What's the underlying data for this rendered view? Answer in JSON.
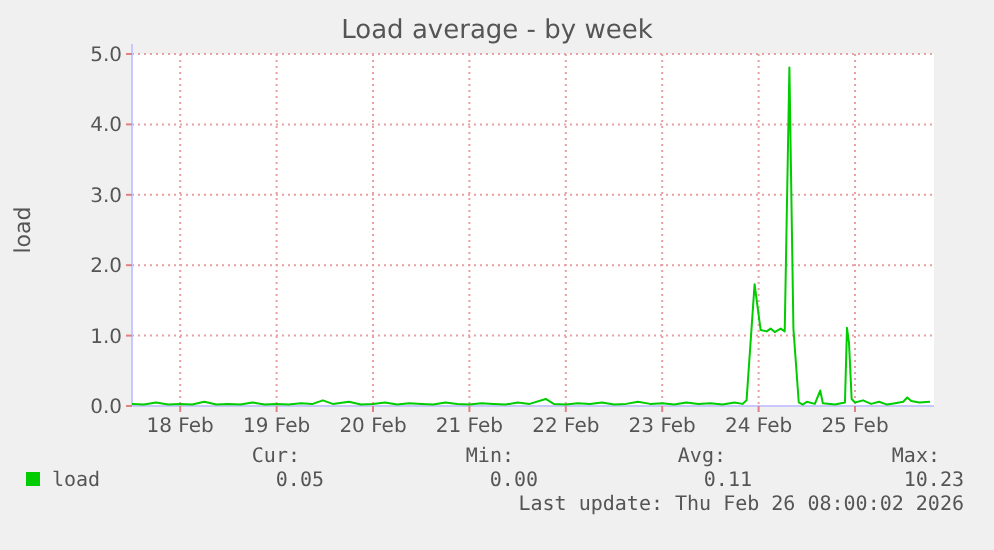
{
  "chart_data": {
    "type": "line",
    "title": "Load average - by week",
    "ylabel": "load",
    "xlim": [
      "2026-02-17T12:00",
      "2026-02-25T19:40"
    ],
    "xticks": [
      {
        "value": "2026-02-18",
        "label": "18 Feb"
      },
      {
        "value": "2026-02-19",
        "label": "19 Feb"
      },
      {
        "value": "2026-02-20",
        "label": "20 Feb"
      },
      {
        "value": "2026-02-21",
        "label": "21 Feb"
      },
      {
        "value": "2026-02-22",
        "label": "22 Feb"
      },
      {
        "value": "2026-02-23",
        "label": "23 Feb"
      },
      {
        "value": "2026-02-24",
        "label": "24 Feb"
      },
      {
        "value": "2026-02-25",
        "label": "25 Feb"
      }
    ],
    "ylim": [
      0,
      5
    ],
    "yticks": [
      {
        "value": 0,
        "label": "0.0"
      },
      {
        "value": 1,
        "label": "1.0"
      },
      {
        "value": 2,
        "label": "2.0"
      },
      {
        "value": 3,
        "label": "3.0"
      },
      {
        "value": 4,
        "label": "4.0"
      },
      {
        "value": 5,
        "label": "5.0"
      }
    ],
    "grid": true,
    "legend": "bottom",
    "marker": "none",
    "line_style": "solid",
    "series": [
      {
        "name": "load",
        "color": "#00cc00",
        "x": [
          "2026-02-17T12:00",
          "2026-02-17T15:00",
          "2026-02-17T18:00",
          "2026-02-17T21:00",
          "2026-02-18T00:00",
          "2026-02-18T03:00",
          "2026-02-18T06:00",
          "2026-02-18T09:00",
          "2026-02-18T12:00",
          "2026-02-18T15:00",
          "2026-02-18T18:00",
          "2026-02-18T21:00",
          "2026-02-19T00:00",
          "2026-02-19T03:00",
          "2026-02-19T06:00",
          "2026-02-19T09:00",
          "2026-02-19T11:30",
          "2026-02-19T14:00",
          "2026-02-19T18:00",
          "2026-02-19T21:00",
          "2026-02-20T00:00",
          "2026-02-20T03:00",
          "2026-02-20T06:00",
          "2026-02-20T09:00",
          "2026-02-20T12:00",
          "2026-02-20T15:00",
          "2026-02-20T18:00",
          "2026-02-20T21:00",
          "2026-02-21T00:00",
          "2026-02-21T03:00",
          "2026-02-21T06:00",
          "2026-02-21T09:00",
          "2026-02-21T12:00",
          "2026-02-21T15:00",
          "2026-02-21T19:00",
          "2026-02-21T21:00",
          "2026-02-22T00:00",
          "2026-02-22T03:00",
          "2026-02-22T06:00",
          "2026-02-22T09:00",
          "2026-02-22T12:00",
          "2026-02-22T15:00",
          "2026-02-22T18:00",
          "2026-02-22T21:00",
          "2026-02-23T00:00",
          "2026-02-23T03:00",
          "2026-02-23T06:00",
          "2026-02-23T09:00",
          "2026-02-23T12:00",
          "2026-02-23T15:00",
          "2026-02-23T18:00",
          "2026-02-23T20:00",
          "2026-02-23T21:00",
          "2026-02-23T23:00",
          "2026-02-24T00:30",
          "2026-02-24T02:00",
          "2026-02-24T03:00",
          "2026-02-24T04:00",
          "2026-02-24T05:30",
          "2026-02-24T06:30",
          "2026-02-24T07:40",
          "2026-02-24T08:40",
          "2026-02-24T10:00",
          "2026-02-24T11:00",
          "2026-02-24T12:00",
          "2026-02-24T14:00",
          "2026-02-24T15:20",
          "2026-02-24T16:00",
          "2026-02-24T19:00",
          "2026-02-24T21:30",
          "2026-02-24T22:00",
          "2026-02-24T22:30",
          "2026-02-24T23:10",
          "2026-02-25T00:00",
          "2026-02-25T02:00",
          "2026-02-25T04:00",
          "2026-02-25T06:00",
          "2026-02-25T08:00",
          "2026-02-25T10:00",
          "2026-02-25T12:00",
          "2026-02-25T13:00",
          "2026-02-25T14:00",
          "2026-02-25T16:00",
          "2026-02-25T18:40"
        ],
        "values": [
          0.03,
          0.02,
          0.05,
          0.02,
          0.03,
          0.02,
          0.06,
          0.02,
          0.03,
          0.02,
          0.05,
          0.02,
          0.03,
          0.02,
          0.04,
          0.03,
          0.08,
          0.03,
          0.06,
          0.02,
          0.03,
          0.05,
          0.02,
          0.04,
          0.03,
          0.02,
          0.05,
          0.03,
          0.02,
          0.04,
          0.03,
          0.02,
          0.05,
          0.03,
          0.1,
          0.03,
          0.02,
          0.04,
          0.03,
          0.05,
          0.02,
          0.03,
          0.06,
          0.03,
          0.04,
          0.02,
          0.05,
          0.03,
          0.04,
          0.02,
          0.05,
          0.03,
          0.08,
          1.73,
          1.08,
          1.06,
          1.1,
          1.05,
          1.1,
          1.06,
          4.81,
          1.1,
          0.05,
          0.02,
          0.06,
          0.03,
          0.22,
          0.04,
          0.02,
          0.05,
          1.11,
          0.9,
          0.1,
          0.05,
          0.08,
          0.03,
          0.06,
          0.02,
          0.04,
          0.06,
          0.12,
          0.07,
          0.05,
          0.06
        ]
      }
    ],
    "annotations": [
      "Cur:",
      "0.05",
      "Min:",
      "0.00",
      "Avg:",
      "0.11",
      "Max:",
      "10.23",
      "Last update: Thu Feb 26 08:00:02 2026"
    ]
  }
}
